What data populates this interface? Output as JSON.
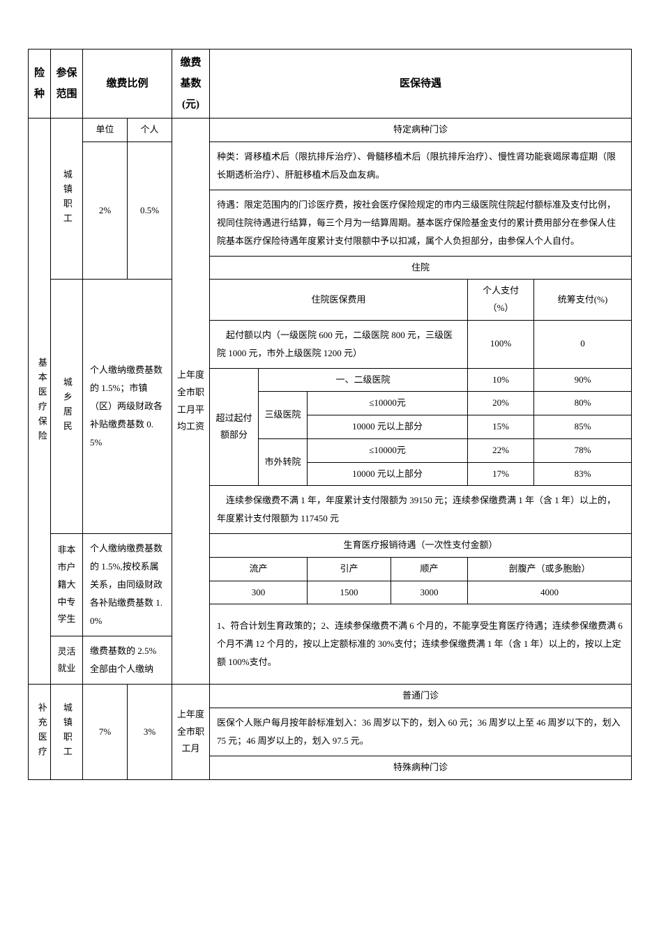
{
  "header": {
    "col_risk_type": "险种",
    "col_insured_scope": "参保范围",
    "col_contrib_ratio": "缴费比例",
    "col_contrib_base": "缴费基数(元)",
    "col_benefits": "医保待遇"
  },
  "subheader": {
    "unit": "单位",
    "individual": "个人"
  },
  "risk_types": {
    "basic_medical": "基本医疗保险",
    "supplementary": "补充医疗"
  },
  "scope": {
    "urban_worker": "城镇职工",
    "urban_rural_resident": "城乡居民",
    "nonlocal_student": "非本市户籍大中专学生",
    "flex_employment": "灵活就业"
  },
  "ratios": {
    "urban_worker_unit": "2%",
    "urban_worker_indiv": "0.5%",
    "resident": "个人缴纳缴费基数的 1.5%；市镇（区）两级财政各补贴缴费基数 0.5%",
    "student": "个人缴纳缴费基数的 1.5%,按校系属关系，由同级财政各补贴缴费基数 1.0%",
    "flex": "缴费基数的 2.5%全部由个人缴纳",
    "supp_unit": "7%",
    "supp_indiv": "3%"
  },
  "base": {
    "prev_year_avg": "上年度全市职工月平均工资",
    "supp_base": "上年度全市职工月"
  },
  "sections": {
    "specific_disease": "特定病种门诊",
    "specific_disease_types": "种类：肾移植术后（限抗排斥治疗）、骨髓移植术后（限抗排斥治疗）、慢性肾功能衰竭尿毒症期（限长期透析治疗）、肝脏移植术后及血友病。",
    "specific_disease_benefit": "待遇：限定范围内的门诊医疗费，按社会医疗保险规定的市内三级医院住院起付额标准及支付比例，视同住院待遇进行结算，每三个月为一结算周期。基本医疗保险基金支付的累计费用部分在参保人住院基本医疗保险待遇年度累计支付限额中予以扣减，属个人负担部分，由参保人个人自付。",
    "hospitalization": "住院",
    "hosp_expense_label": "住院医保费用",
    "personal_pay_pct": "个人支付（%）",
    "pool_pay_pct": "统筹支付(%)",
    "deductible_row": "起付额以内（一级医院 600 元，二级医院 800 元，三级医院 1000 元，市外上级医院 1200 元）",
    "deductible_personal": "100%",
    "deductible_pool": "0",
    "exceed_deductible": "超过起付额部分",
    "level12": "一、二级医院",
    "level12_personal": "10%",
    "level12_pool": "90%",
    "level3": "三级医院",
    "le10000": "≤10000元",
    "gt10000": "10000 元以上部分",
    "l3_le_personal": "20%",
    "l3_le_pool": "80%",
    "l3_gt_personal": "15%",
    "l3_gt_pool": "85%",
    "out_city": "市外转院",
    "oc_le_personal": "22%",
    "oc_le_pool": "78%",
    "oc_gt_personal": "17%",
    "oc_gt_pool": "83%",
    "annual_limit": "连续参保缴费不满 1 年，年度累计支付限额为 39150 元；连续参保缴费满 1 年（含 1 年）以上的，年度累计支付限额为 117450 元",
    "maternity_title": "生育医疗报销待遇（一次性支付金额）",
    "maternity_abortion": "流产",
    "maternity_induce": "引产",
    "maternity_normal": "顺产",
    "maternity_csection": "剖腹产（或多胞胎）",
    "maternity_v_abortion": "300",
    "maternity_v_induce": "1500",
    "maternity_v_normal": "3000",
    "maternity_v_csection": "4000",
    "maternity_conditions": "1、符合计划生育政策的；2、连续参保缴费不满 6 个月的，不能享受生育医疗待遇；连续参保缴费满 6 个月不满 12 个月的，按以上定额标准的 30%支付；连续参保缴费满 1 年（含 1 年）以上的，按以上定额 100%支付。",
    "general_outpatient": "普通门诊",
    "general_outpatient_desc": "医保个人账户每月按年龄标准划入：36 周岁以下的，划入 60 元；36 周岁以上至 46 周岁以下的，划入 75 元；46 周岁以上的，划入 97.5 元。",
    "special_disease_outpatient": "特殊病种门诊"
  }
}
